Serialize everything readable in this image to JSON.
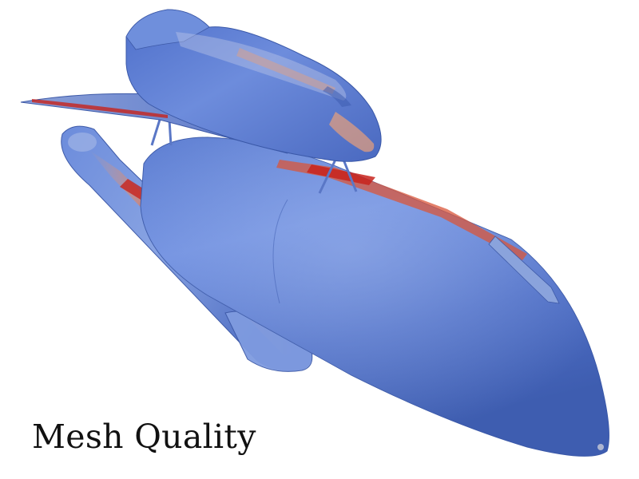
{
  "caption": "Mesh Quality",
  "scene": {
    "subject": "space-shuttle-stack",
    "parts": [
      "orbiter",
      "external-tank",
      "solid-rocket-booster",
      "struts"
    ],
    "colormap": {
      "low": "#4a6bbf",
      "mid_low": "#7a9ad6",
      "mid": "#c9ccd8",
      "mid_high": "#e8a07a",
      "high": "#c8231c"
    },
    "background": "#ffffff"
  }
}
